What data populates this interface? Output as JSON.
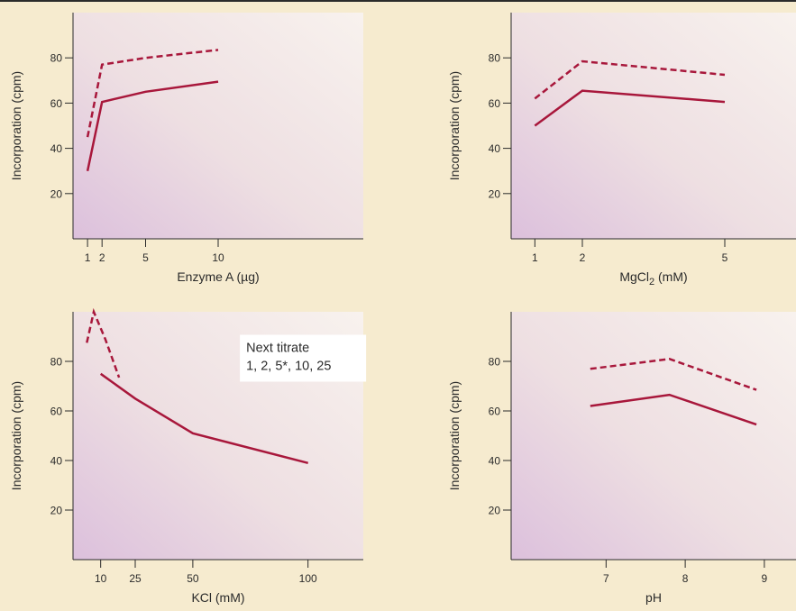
{
  "colors": {
    "background": "#f6ebcf",
    "series_line": "#a8173b",
    "axis": "#2b2b2b",
    "panel_light": "#f8f2ee",
    "panel_purple": "#dcc0dc"
  },
  "chart_data": [
    {
      "type": "line",
      "xlabel": "Enzyme A (µg)",
      "ylabel": "Incorporation (cpm)",
      "xlim": [
        0,
        20
      ],
      "ylim": [
        0,
        100
      ],
      "xticks": [
        1,
        2,
        5,
        10
      ],
      "yticks": [
        20,
        40,
        60,
        80
      ],
      "grid": false,
      "series": [
        {
          "style": "dashed",
          "points": [
            [
              1,
              45
            ],
            [
              2,
              77
            ],
            [
              5,
              80
            ],
            [
              10,
              83.5
            ]
          ]
        },
        {
          "style": "solid",
          "points": [
            [
              1,
              30
            ],
            [
              2,
              60.5
            ],
            [
              5,
              65
            ],
            [
              10,
              69.5
            ]
          ]
        }
      ]
    },
    {
      "type": "line",
      "xlabel": "MgCl",
      "xlabel_sub": "2",
      "xlabel_suffix": " (mM)",
      "ylabel": "Incorporation (cpm)",
      "xlim": [
        0.5,
        6.5
      ],
      "ylim": [
        0,
        100
      ],
      "xticks": [
        1,
        2,
        5
      ],
      "yticks": [
        20,
        40,
        60,
        80
      ],
      "grid": false,
      "series": [
        {
          "style": "dashed",
          "points": [
            [
              1,
              62
            ],
            [
              2,
              78.5
            ],
            [
              5,
              72.5
            ]
          ]
        },
        {
          "style": "solid",
          "points": [
            [
              1,
              50
            ],
            [
              2,
              65.5
            ],
            [
              5,
              60.5
            ]
          ]
        }
      ]
    },
    {
      "type": "line",
      "xlabel": "KCl (mM)",
      "ylabel": "Incorporation (cpm)",
      "xlim": [
        -2,
        124
      ],
      "ylim": [
        0,
        100
      ],
      "xticks": [
        10,
        25,
        50,
        100
      ],
      "yticks": [
        20,
        40,
        60,
        80
      ],
      "grid": false,
      "annotation": {
        "lines": [
          "Next titrate",
          "1, 2, 5*, 10, 25"
        ],
        "x": 72,
        "y": 82
      },
      "series": [
        {
          "style": "dashed",
          "points": [
            [
              4,
              87.5
            ],
            [
              7,
              100
            ],
            [
              12,
              89
            ],
            [
              18,
              73.5
            ]
          ]
        },
        {
          "style": "solid",
          "points": [
            [
              10,
              75
            ],
            [
              25,
              65
            ],
            [
              50,
              51
            ],
            [
              100,
              39
            ]
          ]
        }
      ]
    },
    {
      "type": "line",
      "xlabel": "pH",
      "ylabel": "Incorporation (cpm)",
      "xlim": [
        5.8,
        9.4
      ],
      "ylim": [
        0,
        100
      ],
      "xticks": [
        7,
        8,
        9
      ],
      "yticks": [
        20,
        40,
        60,
        80
      ],
      "grid": false,
      "series": [
        {
          "style": "dashed",
          "points": [
            [
              6.8,
              77
            ],
            [
              7.8,
              81
            ],
            [
              8.9,
              68.5
            ]
          ]
        },
        {
          "style": "solid",
          "points": [
            [
              6.8,
              62
            ],
            [
              7.8,
              66.5
            ],
            [
              8.9,
              54.5
            ]
          ]
        }
      ]
    }
  ]
}
